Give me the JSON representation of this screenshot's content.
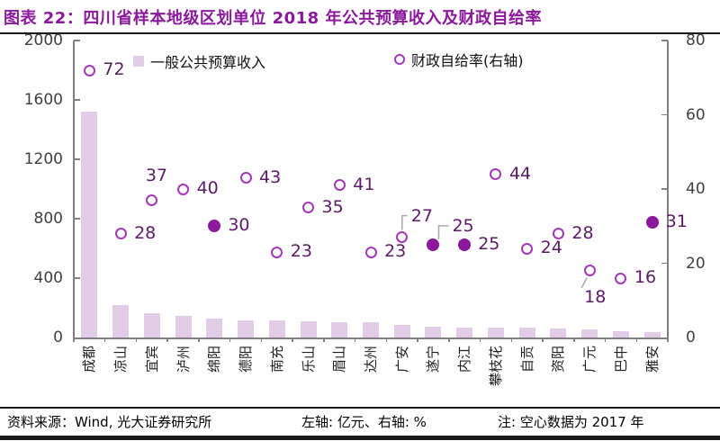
{
  "header": {
    "title": "图表 22：四川省样本地级区划单位 2018 年公共预算收入及财政自给率"
  },
  "legend": {
    "bar_label": "一般公共预算收入",
    "rate_label": "财政自给率(右轴)"
  },
  "footer": {
    "source": "资料来源：Wind, 光大证券研究所",
    "axes_note": "左轴: 亿元、右轴: %",
    "note": "注: 空心数据为 2017 年"
  },
  "colors": {
    "title": "#8A199B",
    "bar_fill": "#E1CBE7",
    "ring": "#A438B8",
    "filled": "#8C189B",
    "value_label": "#5C1A66",
    "axis_line": "#808080",
    "tick_label": "#3F3F3F",
    "category_label": "#1F1F1F",
    "leader": "#ABABAB",
    "rule": "#1A1A1A"
  },
  "chart_data": {
    "type": "bar",
    "subtype": "bar + scatter combo, dual axis",
    "title": "四川省样本地级区划单位 2018 年公共预算收入及财政自给率",
    "categories": [
      "成都",
      "凉山",
      "宜宾",
      "泸州",
      "绵阳",
      "德阳",
      "南充",
      "乐山",
      "眉山",
      "达州",
      "广安",
      "遂宁",
      "内江",
      "攀枝花",
      "自贡",
      "资阳",
      "广元",
      "巴中",
      "雅安"
    ],
    "series": [
      {
        "name": "一般公共预算收入",
        "type": "bar",
        "axis": "left",
        "unit": "亿元",
        "values": [
          1520,
          218,
          164,
          147,
          126,
          117,
          115,
          108,
          104,
          102,
          85,
          71,
          69,
          68,
          67,
          59,
          52,
          44,
          38
        ]
      },
      {
        "name": "财政自给率(右轴)",
        "type": "scatter",
        "axis": "right",
        "unit": "%",
        "values": [
          72,
          28,
          37,
          40,
          30,
          43,
          23,
          35,
          41,
          23,
          27,
          25,
          25,
          44,
          24,
          28,
          18,
          16,
          31
        ],
        "hollow": [
          true,
          true,
          true,
          true,
          false,
          true,
          true,
          true,
          true,
          true,
          true,
          false,
          false,
          true,
          true,
          true,
          true,
          true,
          false
        ],
        "hollow_note": "空心数据为 2017 年"
      }
    ],
    "left_axis": {
      "min": 0,
      "max": 2000,
      "ticks": [
        0,
        400,
        800,
        1200,
        1600,
        2000
      ],
      "unit": "亿元"
    },
    "right_axis": {
      "min": 0,
      "max": 80,
      "ticks": [
        0,
        20,
        40,
        60,
        80
      ],
      "unit": "%"
    },
    "label_pos": [
      "right",
      "right",
      "above",
      "right",
      "right",
      "right",
      "right",
      "right",
      "right",
      "right",
      "leader-up",
      "leader-up-right",
      "right",
      "right",
      "right",
      "right",
      "leader-down",
      "right",
      "right"
    ],
    "legend_position": "top",
    "grid": false
  }
}
